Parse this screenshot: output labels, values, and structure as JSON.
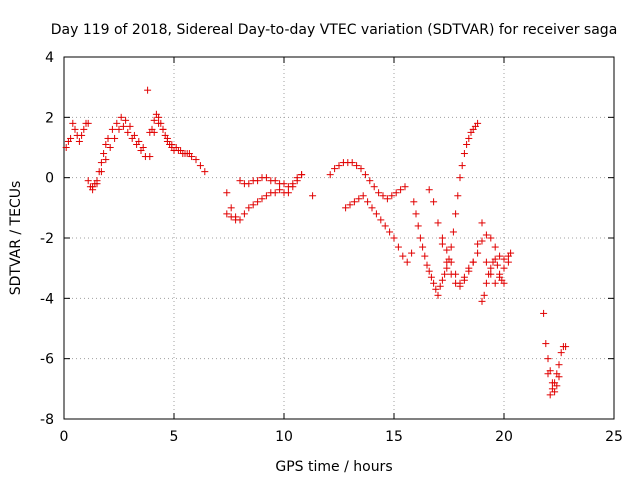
{
  "chart_data": {
    "type": "scatter",
    "title": "Day 119 of 2018, Sidereal Day-to-day VTEC variation (SDTVAR) for receiver saga",
    "xlabel": "GPS time / hours",
    "ylabel": "SDTVAR / TECUs",
    "xlim": [
      0,
      25
    ],
    "ylim": [
      -8,
      4
    ],
    "xticks": [
      "0",
      "5",
      "10",
      "15",
      "20",
      "25"
    ],
    "yticks": [
      "-8",
      "-6",
      "-4",
      "-2",
      "0",
      "2",
      "4"
    ],
    "grid": true,
    "legend": "none",
    "marker": "plus",
    "color": "#e00000",
    "series": [
      {
        "x": [
          0.1,
          0.2,
          0.3,
          0.4,
          0.5,
          0.6,
          0.7,
          0.8,
          0.9,
          1.0,
          1.1,
          1.2,
          1.3,
          1.4,
          1.5,
          1.6,
          1.7,
          1.8,
          1.9,
          2.0,
          2.2,
          2.4,
          2.6,
          2.8,
          3.0,
          3.2,
          3.4,
          3.6,
          3.8,
          3.9,
          4.0,
          4.1,
          4.2,
          4.3,
          4.4,
          4.5,
          4.6,
          4.7,
          4.8,
          4.9,
          5.0,
          5.2,
          5.4,
          5.6,
          5.8,
          6.0,
          6.2,
          6.4
        ],
        "y": [
          1.0,
          1.2,
          1.3,
          1.8,
          1.6,
          1.4,
          1.2,
          1.4,
          1.6,
          1.8,
          1.8,
          -0.3,
          -0.4,
          -0.2,
          -0.1,
          0.2,
          0.5,
          0.8,
          1.1,
          1.3,
          1.6,
          1.8,
          2.0,
          1.9,
          1.7,
          1.4,
          1.2,
          1.0,
          2.9,
          1.5,
          1.6,
          1.9,
          2.1,
          2.0,
          1.8,
          1.6,
          1.4,
          1.2,
          1.1,
          1.0,
          0.9,
          0.9,
          0.8,
          0.8,
          0.7,
          0.6,
          0.4,
          0.2
        ]
      },
      {
        "x": [
          1.1,
          1.3,
          1.5,
          1.7,
          1.9,
          2.1,
          2.3,
          2.5,
          2.7,
          2.9,
          3.1,
          3.3,
          3.5,
          3.7,
          3.9,
          4.1,
          4.3,
          4.5,
          4.7,
          4.9,
          5.1,
          5.3,
          5.5,
          5.7
        ],
        "y": [
          -0.1,
          -0.3,
          -0.2,
          0.2,
          0.6,
          1.0,
          1.3,
          1.6,
          1.7,
          1.5,
          1.3,
          1.1,
          0.9,
          0.7,
          0.7,
          1.5,
          1.8,
          1.6,
          1.3,
          1.1,
          1.0,
          0.9,
          0.8,
          0.8
        ]
      },
      {
        "x": [
          7.4,
          7.6,
          7.8,
          8.0,
          8.2,
          8.4,
          8.6,
          8.8,
          9.0,
          9.2,
          9.4,
          9.6,
          9.8,
          10.0,
          10.2,
          10.4,
          10.6,
          10.8,
          11.3
        ],
        "y": [
          -0.5,
          -1.0,
          -1.3,
          -1.4,
          -1.2,
          -1.0,
          -0.9,
          -0.8,
          -0.7,
          -0.6,
          -0.5,
          -0.5,
          -0.4,
          -0.5,
          -0.5,
          -0.3,
          -0.1,
          0.1,
          -0.6
        ]
      },
      {
        "x": [
          7.4,
          7.6,
          7.8,
          8.0,
          8.2,
          8.4,
          8.6,
          8.8,
          9.0,
          9.2,
          9.4,
          9.6,
          9.8,
          10.0,
          10.2,
          10.4,
          10.6,
          10.8
        ],
        "y": [
          -1.2,
          -1.3,
          -1.4,
          -0.1,
          -0.2,
          -0.2,
          -0.1,
          -0.1,
          0.0,
          0.0,
          -0.1,
          -0.1,
          -0.2,
          -0.2,
          -0.3,
          -0.2,
          0.0,
          0.1
        ]
      },
      {
        "x": [
          12.1,
          12.3,
          12.5,
          12.7,
          12.9,
          13.1,
          13.3,
          13.5,
          13.7,
          13.9,
          14.1,
          14.3,
          14.5,
          14.7,
          14.9,
          15.1,
          15.3,
          15.5
        ],
        "y": [
          0.1,
          0.3,
          0.4,
          0.5,
          0.5,
          0.5,
          0.4,
          0.3,
          0.1,
          -0.1,
          -0.3,
          -0.5,
          -0.6,
          -0.7,
          -0.6,
          -0.5,
          -0.4,
          -0.3
        ]
      },
      {
        "x": [
          12.8,
          13.0,
          13.2,
          13.4,
          13.6,
          13.8,
          14.0,
          14.2,
          14.4,
          14.6,
          14.8,
          15.0,
          15.2,
          15.4,
          15.6,
          15.8
        ],
        "y": [
          -1.0,
          -0.9,
          -0.8,
          -0.7,
          -0.6,
          -0.8,
          -1.0,
          -1.2,
          -1.4,
          -1.6,
          -1.8,
          -2.0,
          -2.3,
          -2.6,
          -2.8,
          -2.5
        ]
      },
      {
        "x": [
          15.9,
          16.0,
          16.1,
          16.2,
          16.3,
          16.4,
          16.5,
          16.6,
          16.7,
          16.8,
          16.9,
          17.0,
          17.1,
          17.2,
          17.3,
          17.4,
          17.5,
          17.6,
          17.7,
          17.8,
          17.9,
          18.0,
          18.1,
          18.2,
          18.3,
          18.4,
          18.5,
          18.6,
          18.7,
          18.8
        ],
        "y": [
          -0.8,
          -1.2,
          -1.6,
          -2.0,
          -2.3,
          -2.6,
          -2.9,
          -3.1,
          -3.3,
          -3.5,
          -3.7,
          -3.9,
          -3.6,
          -3.4,
          -3.2,
          -3.0,
          -2.7,
          -2.3,
          -1.8,
          -1.2,
          -0.6,
          0.0,
          0.4,
          0.8,
          1.1,
          1.3,
          1.5,
          1.6,
          1.7,
          1.8
        ]
      },
      {
        "x": [
          16.6,
          16.8,
          17.0,
          17.2,
          17.4,
          17.6,
          17.8,
          18.0,
          18.2,
          18.4,
          18.6,
          18.8,
          19.0,
          19.2,
          19.4,
          19.6,
          19.8,
          20.0,
          20.2,
          20.3
        ],
        "y": [
          -0.4,
          -0.8,
          -1.5,
          -2.2,
          -2.8,
          -3.2,
          -3.5,
          -3.6,
          -3.4,
          -3.0,
          -2.8,
          -2.5,
          -2.1,
          -1.9,
          -2.0,
          -2.3,
          -2.6,
          -2.7,
          -2.6,
          -2.5
        ]
      },
      {
        "x": [
          17.2,
          17.4,
          17.6,
          17.8,
          18.0,
          18.2,
          18.4,
          18.6,
          18.8,
          19.0,
          19.2,
          19.4,
          19.6,
          19.8,
          20.0,
          20.2
        ],
        "y": [
          -2.0,
          -2.4,
          -2.8,
          -3.2,
          -3.5,
          -3.3,
          -3.1,
          -2.8,
          -2.2,
          -1.5,
          -2.8,
          -3.2,
          -3.5,
          -3.3,
          -3.0,
          -2.8
        ]
      },
      {
        "x": [
          19.0,
          19.1,
          19.2,
          19.3,
          19.4,
          19.5,
          19.6,
          19.7,
          19.8,
          19.9,
          20.0
        ],
        "y": [
          -4.1,
          -3.9,
          -3.5,
          -3.2,
          -3.0,
          -2.8,
          -2.7,
          -2.9,
          -3.2,
          -3.4,
          -3.5
        ]
      },
      {
        "x": [
          21.8,
          21.9,
          22.0,
          22.1,
          22.2,
          22.3,
          22.4,
          22.5,
          22.6,
          22.7,
          22.8
        ],
        "y": [
          -4.5,
          -5.5,
          -6.5,
          -7.2,
          -7.0,
          -6.8,
          -6.5,
          -6.2,
          -5.8,
          -5.6,
          -5.6
        ]
      },
      {
        "x": [
          22.0,
          22.1,
          22.2,
          22.3,
          22.4,
          22.5
        ],
        "y": [
          -6.0,
          -6.4,
          -6.8,
          -7.1,
          -6.9,
          -6.6
        ]
      }
    ]
  }
}
